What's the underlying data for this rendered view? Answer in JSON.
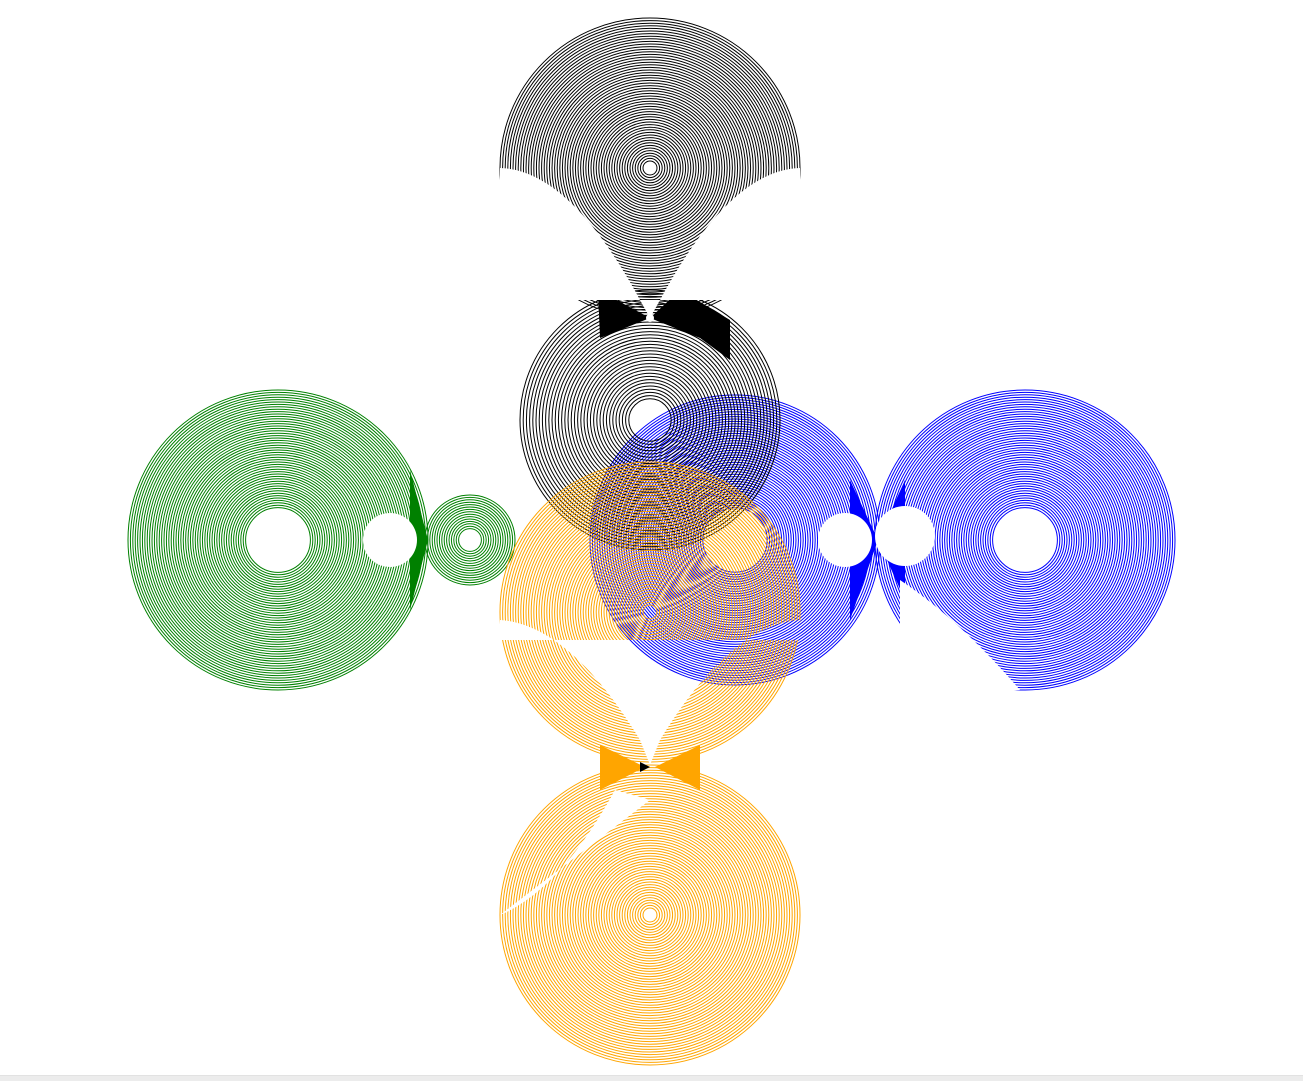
{
  "artwork": {
    "description_free": true,
    "clusters": [
      {
        "id": "top",
        "color": "#000000"
      },
      {
        "id": "left",
        "color": "#008000"
      },
      {
        "id": "right",
        "color": "#0000ff"
      },
      {
        "id": "bottom",
        "color": "#ffa500"
      }
    ],
    "background": "#ffffff"
  }
}
